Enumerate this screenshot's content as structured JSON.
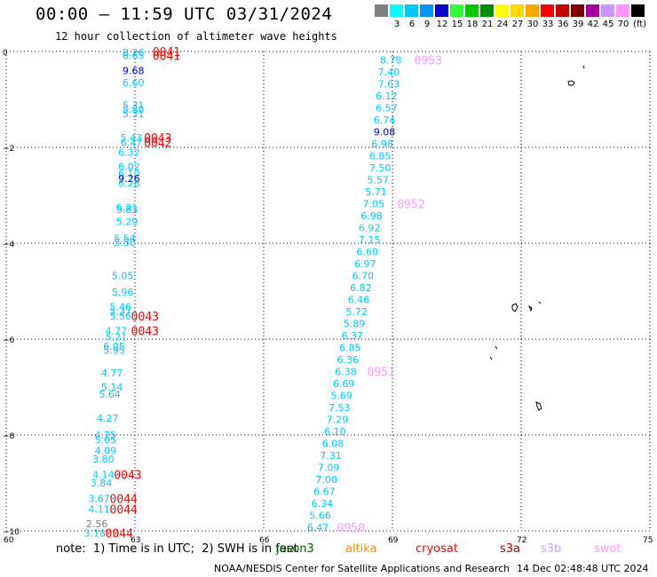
{
  "header": {
    "title": "00:00 – 11:59 UTC 03/31/2024",
    "subtitle": "12 hour collection of altimeter wave heights"
  },
  "legend": {
    "unit": "(ft)",
    "items": [
      {
        "label": "",
        "color": "#808080"
      },
      {
        "label": "3",
        "color": "#00ffff"
      },
      {
        "label": "6",
        "color": "#00c8ff"
      },
      {
        "label": "9",
        "color": "#0096ff"
      },
      {
        "label": "12",
        "color": "#0000cd"
      },
      {
        "label": "15",
        "color": "#33ff33"
      },
      {
        "label": "18",
        "color": "#00c800"
      },
      {
        "label": "21",
        "color": "#008c00"
      },
      {
        "label": "24",
        "color": "#ffff00"
      },
      {
        "label": "27",
        "color": "#ffd700"
      },
      {
        "label": "30",
        "color": "#ffa500"
      },
      {
        "label": "33",
        "color": "#ff0000"
      },
      {
        "label": "36",
        "color": "#c80000"
      },
      {
        "label": "39",
        "color": "#800000"
      },
      {
        "label": "42",
        "color": "#a000a0"
      },
      {
        "label": "45",
        "color": "#c896ff"
      },
      {
        "label": "70",
        "color": "#ff96ff"
      },
      {
        "label": "",
        "color": "#000000"
      }
    ]
  },
  "footer": {
    "note": "note:  1) Time is in UTC;  2) SWH is in feet",
    "credit": "NOAA/NESDIS Center for Satellite Applications and Research",
    "generated": "14 Dec 02:48:48 UTC 2024",
    "satellites": [
      {
        "name": "jason3",
        "color": "#006400"
      },
      {
        "name": "altika",
        "color": "#ff8c00"
      },
      {
        "name": "cryosat",
        "color": "#ff0000"
      },
      {
        "name": "s3a",
        "color": "#b40000"
      },
      {
        "name": "s3b",
        "color": "#c8a0ff"
      },
      {
        "name": "swot",
        "color": "#ff96ff"
      }
    ]
  },
  "chart_data": {
    "type": "scatter",
    "xlim": [
      60,
      75
    ],
    "ylim": [
      -10,
      0
    ],
    "xticks": [
      "60",
      "63",
      "66",
      "69",
      "72",
      "75"
    ],
    "yticks": [
      "0",
      "−2",
      "−4",
      "−6",
      "−8",
      "−10"
    ],
    "grid": true,
    "series": [
      {
        "points": [
          {
            "x": 63.0,
            "y": -0.02,
            "label": "8.26",
            "color": "#00c8ff"
          },
          {
            "x": 63.0,
            "y": -0.08,
            "label": "6.65",
            "color": "#00c8ff"
          },
          {
            "x": 63.0,
            "y": -0.4,
            "label": "9.68",
            "color": "#0000cd"
          },
          {
            "x": 63.0,
            "y": -0.65,
            "label": "6.60",
            "color": "#00c8ff"
          },
          {
            "x": 63.0,
            "y": -1.12,
            "label": "5.31",
            "color": "#00c8ff"
          },
          {
            "x": 63.0,
            "y": -1.2,
            "label": "5.80",
            "color": "#00c8ff"
          },
          {
            "x": 63.0,
            "y": -1.3,
            "label": "5.31",
            "color": "#00c8ff"
          },
          {
            "x": 62.95,
            "y": -1.8,
            "label": "5.43",
            "color": "#00c8ff"
          },
          {
            "x": 62.95,
            "y": -1.9,
            "label": "6.47",
            "color": "#00c8ff"
          },
          {
            "x": 62.9,
            "y": -2.1,
            "label": "6.32",
            "color": "#00c8ff"
          },
          {
            "x": 62.9,
            "y": -2.4,
            "label": "6.02",
            "color": "#00c8ff"
          },
          {
            "x": 62.9,
            "y": -2.55,
            "label": "6.10",
            "color": "#00c8ff"
          },
          {
            "x": 62.9,
            "y": -2.65,
            "label": "9.26",
            "color": "#0000cd"
          },
          {
            "x": 62.9,
            "y": -2.75,
            "label": "6.28",
            "color": "#00c8ff"
          },
          {
            "x": 62.85,
            "y": -3.25,
            "label": "6.21",
            "color": "#00c8ff"
          },
          {
            "x": 62.85,
            "y": -3.3,
            "label": "5.83",
            "color": "#00c8ff"
          },
          {
            "x": 62.85,
            "y": -3.55,
            "label": "5.29",
            "color": "#00c8ff"
          },
          {
            "x": 62.8,
            "y": -3.9,
            "label": "5.54",
            "color": "#00c8ff"
          },
          {
            "x": 62.8,
            "y": -3.98,
            "label": "5.50",
            "color": "#00c8ff"
          },
          {
            "x": 62.75,
            "y": -4.68,
            "label": "5.05",
            "color": "#00c8ff"
          },
          {
            "x": 62.75,
            "y": -5.02,
            "label": "5.96",
            "color": "#00c8ff"
          },
          {
            "x": 62.7,
            "y": -5.32,
            "label": "5.46",
            "color": "#00c8ff"
          },
          {
            "x": 62.7,
            "y": -5.42,
            "label": "5.37",
            "color": "#00c8ff"
          },
          {
            "x": 62.7,
            "y": -5.52,
            "label": "5.56",
            "color": "#00c8ff"
          },
          {
            "x": 62.6,
            "y": -5.82,
            "label": "4.77",
            "color": "#00c8ff"
          },
          {
            "x": 62.6,
            "y": -5.95,
            "label": "5.21",
            "color": "#00c8ff"
          },
          {
            "x": 62.55,
            "y": -6.15,
            "label": "6.05",
            "color": "#00c8ff"
          },
          {
            "x": 62.55,
            "y": -6.23,
            "label": "5.95",
            "color": "#00c8ff"
          },
          {
            "x": 62.5,
            "y": -6.7,
            "label": "4.77",
            "color": "#00c8ff"
          },
          {
            "x": 62.5,
            "y": -7.0,
            "label": "5.14",
            "color": "#00c8ff"
          },
          {
            "x": 62.45,
            "y": -7.15,
            "label": "5.64",
            "color": "#00c8ff"
          },
          {
            "x": 62.4,
            "y": -7.65,
            "label": "4.27",
            "color": "#00c8ff"
          },
          {
            "x": 62.35,
            "y": -8.0,
            "label": "4.75",
            "color": "#00c8ff"
          },
          {
            "x": 62.35,
            "y": -8.1,
            "label": "5.05",
            "color": "#00c8ff"
          },
          {
            "x": 62.35,
            "y": -8.32,
            "label": "4.09",
            "color": "#00c8ff"
          },
          {
            "x": 62.3,
            "y": -8.5,
            "label": "3.80",
            "color": "#00c8ff"
          },
          {
            "x": 62.3,
            "y": -8.82,
            "label": "4.14",
            "color": "#00c8ff"
          },
          {
            "x": 62.25,
            "y": -9.0,
            "label": "3.84",
            "color": "#00c8ff"
          },
          {
            "x": 62.2,
            "y": -9.32,
            "label": "3.67",
            "color": "#00c8ff"
          },
          {
            "x": 62.2,
            "y": -9.55,
            "label": "4.11",
            "color": "#00c8ff"
          },
          {
            "x": 62.15,
            "y": -9.85,
            "label": "2.56",
            "color": "#808080"
          },
          {
            "x": 62.1,
            "y": -10.05,
            "label": "3.18",
            "color": "#00c8ff"
          },
          {
            "x": 69.0,
            "y": -0.18,
            "label": "8.78",
            "color": "#00c8ff"
          },
          {
            "x": 68.95,
            "y": -0.43,
            "label": "7.40",
            "color": "#00c8ff"
          },
          {
            "x": 68.95,
            "y": -0.68,
            "label": "7.63",
            "color": "#00c8ff"
          },
          {
            "x": 68.9,
            "y": -0.93,
            "label": "6.12",
            "color": "#00c8ff"
          },
          {
            "x": 68.9,
            "y": -1.18,
            "label": "6.57",
            "color": "#00c8ff"
          },
          {
            "x": 68.85,
            "y": -1.43,
            "label": "6.74",
            "color": "#00c8ff"
          },
          {
            "x": 68.85,
            "y": -1.68,
            "label": "9.08",
            "color": "#0000cd"
          },
          {
            "x": 68.8,
            "y": -1.93,
            "label": "6.98",
            "color": "#00c8ff"
          },
          {
            "x": 68.75,
            "y": -2.18,
            "label": "6.85",
            "color": "#00c8ff"
          },
          {
            "x": 68.75,
            "y": -2.43,
            "label": "7.50",
            "color": "#00c8ff"
          },
          {
            "x": 68.7,
            "y": -2.68,
            "label": "5.57",
            "color": "#00c8ff"
          },
          {
            "x": 68.65,
            "y": -2.93,
            "label": "5.71",
            "color": "#00c8ff"
          },
          {
            "x": 68.6,
            "y": -3.18,
            "label": "7.05",
            "color": "#00c8ff"
          },
          {
            "x": 68.55,
            "y": -3.43,
            "label": "6.98",
            "color": "#00c8ff"
          },
          {
            "x": 68.5,
            "y": -3.68,
            "label": "6.92",
            "color": "#00c8ff"
          },
          {
            "x": 68.5,
            "y": -3.93,
            "label": "7.15",
            "color": "#00c8ff"
          },
          {
            "x": 68.45,
            "y": -4.18,
            "label": "6.60",
            "color": "#00c8ff"
          },
          {
            "x": 68.4,
            "y": -4.43,
            "label": "6.97",
            "color": "#00c8ff"
          },
          {
            "x": 68.35,
            "y": -4.68,
            "label": "6.70",
            "color": "#00c8ff"
          },
          {
            "x": 68.3,
            "y": -4.93,
            "label": "6.82",
            "color": "#00c8ff"
          },
          {
            "x": 68.25,
            "y": -5.18,
            "label": "6.46",
            "color": "#00c8ff"
          },
          {
            "x": 68.2,
            "y": -5.43,
            "label": "5.72",
            "color": "#00c8ff"
          },
          {
            "x": 68.15,
            "y": -5.68,
            "label": "5.89",
            "color": "#00c8ff"
          },
          {
            "x": 68.1,
            "y": -5.93,
            "label": "6.37",
            "color": "#00c8ff"
          },
          {
            "x": 68.05,
            "y": -6.18,
            "label": "6.85",
            "color": "#00c8ff"
          },
          {
            "x": 68.0,
            "y": -6.43,
            "label": "6.36",
            "color": "#00c8ff"
          },
          {
            "x": 67.95,
            "y": -6.68,
            "label": "6.38",
            "color": "#00c8ff"
          },
          {
            "x": 67.9,
            "y": -6.93,
            "label": "6.69",
            "color": "#00c8ff"
          },
          {
            "x": 67.85,
            "y": -7.18,
            "label": "5.69",
            "color": "#00c8ff"
          },
          {
            "x": 67.8,
            "y": -7.43,
            "label": "7.53",
            "color": "#00c8ff"
          },
          {
            "x": 67.75,
            "y": -7.68,
            "label": "7.29",
            "color": "#00c8ff"
          },
          {
            "x": 67.7,
            "y": -7.93,
            "label": "6.10",
            "color": "#00c8ff"
          },
          {
            "x": 67.65,
            "y": -8.18,
            "label": "6.08",
            "color": "#00c8ff"
          },
          {
            "x": 67.6,
            "y": -8.43,
            "label": "7.31",
            "color": "#00c8ff"
          },
          {
            "x": 67.55,
            "y": -8.68,
            "label": "7.09",
            "color": "#00c8ff"
          },
          {
            "x": 67.5,
            "y": -8.93,
            "label": "7.00",
            "color": "#00c8ff"
          },
          {
            "x": 67.45,
            "y": -9.18,
            "label": "6.67",
            "color": "#00c8ff"
          },
          {
            "x": 67.4,
            "y": -9.43,
            "label": "6.34",
            "color": "#00c8ff"
          },
          {
            "x": 67.35,
            "y": -9.68,
            "label": "5.66",
            "color": "#00c8ff"
          },
          {
            "x": 67.3,
            "y": -9.93,
            "label": "6.47",
            "color": "#00c8ff"
          }
        ]
      }
    ],
    "annotations": [
      {
        "x": 63.7,
        "y": 0.0,
        "label": "0041",
        "color": "#ff0000"
      },
      {
        "x": 63.7,
        "y": -0.08,
        "label": "0041",
        "color": "#ff0000"
      },
      {
        "x": 63.5,
        "y": -1.8,
        "label": "0043",
        "color": "#ff0000"
      },
      {
        "x": 63.5,
        "y": -1.9,
        "label": "0042",
        "color": "#ff0000"
      },
      {
        "x": 63.2,
        "y": -5.52,
        "label": "0043",
        "color": "#ff0000"
      },
      {
        "x": 63.2,
        "y": -5.82,
        "label": "0043",
        "color": "#ff0000"
      },
      {
        "x": 62.8,
        "y": -8.82,
        "label": "0043",
        "color": "#ff0000"
      },
      {
        "x": 62.7,
        "y": -9.32,
        "label": "0044",
        "color": "#ff0000"
      },
      {
        "x": 62.7,
        "y": -9.55,
        "label": "0044",
        "color": "#ff0000"
      },
      {
        "x": 62.6,
        "y": -10.05,
        "label": "0044",
        "color": "#ff0000"
      },
      {
        "x": 69.8,
        "y": -0.18,
        "label": "0953",
        "color": "#ff96ff"
      },
      {
        "x": 69.4,
        "y": -3.18,
        "label": "0952",
        "color": "#ff96ff"
      },
      {
        "x": 68.7,
        "y": -6.68,
        "label": "0951",
        "color": "#ff96ff"
      },
      {
        "x": 68.0,
        "y": -9.93,
        "label": "0950",
        "color": "#ff96ff"
      }
    ]
  }
}
